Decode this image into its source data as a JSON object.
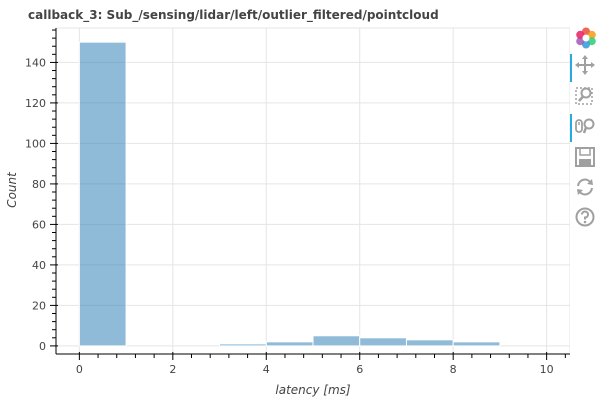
{
  "chart_data": {
    "type": "bar",
    "title": "callback_3: Sub_/sensing/lidar/left/outlier_filtered/pointcloud",
    "xlabel": "latency [ms]",
    "ylabel": "Count",
    "bins": [
      {
        "x0": 0,
        "x1": 1,
        "count": 150
      },
      {
        "x0": 1,
        "x1": 2,
        "count": 0
      },
      {
        "x0": 2,
        "x1": 3,
        "count": 0
      },
      {
        "x0": 3,
        "x1": 4,
        "count": 1
      },
      {
        "x0": 4,
        "x1": 5,
        "count": 2
      },
      {
        "x0": 5,
        "x1": 6,
        "count": 5
      },
      {
        "x0": 6,
        "x1": 7,
        "count": 4
      },
      {
        "x0": 7,
        "x1": 8,
        "count": 3
      },
      {
        "x0": 8,
        "x1": 9,
        "count": 2
      }
    ],
    "xlim": [
      -0.5,
      10.5
    ],
    "ylim": [
      -4,
      157
    ],
    "xticks": [
      0,
      2,
      4,
      6,
      8,
      10
    ],
    "yticks": [
      0,
      20,
      40,
      60,
      80,
      100,
      120,
      140
    ],
    "grid": true,
    "bar_color": "#1f77b4",
    "bar_alpha": 0.5
  },
  "toolbar": {
    "logo_icon": "bokeh-logo-icon",
    "tools": [
      {
        "name": "pan-icon",
        "active": true
      },
      {
        "name": "box-zoom-icon",
        "active": false
      },
      {
        "name": "wheel-zoom-icon",
        "active": true
      },
      {
        "name": "save-icon",
        "active": false
      },
      {
        "name": "reset-icon",
        "active": false
      },
      {
        "name": "help-icon",
        "active": false
      }
    ]
  }
}
